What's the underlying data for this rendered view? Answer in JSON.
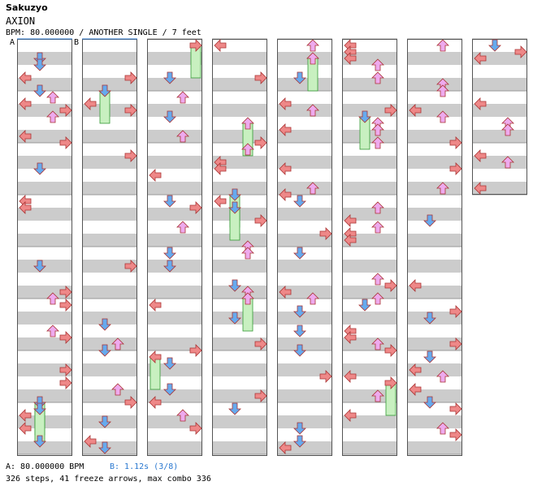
{
  "header": {
    "artist": "Sakuzyo",
    "title": "AXION",
    "meta": "BPM: 80.000000 / ANOTHER SINGLE / 7 feet"
  },
  "markers": {
    "a": "A",
    "b": "B"
  },
  "colors": {
    "left_arrow": "#ee8888",
    "down_arrow": "#66aaee",
    "up_arrow": "#eeaaee",
    "right_arrow": "#ee8888",
    "freeze": "#c8f0c0",
    "band_gray": "#cccccc",
    "band_white": "#ffffff",
    "accent_blue": "#2a78d0"
  },
  "footer": {
    "bpm_a": "A: 80.000000 BPM",
    "bpm_b": "B: 1.12s (3/8)",
    "stats": "326 steps, 41 freeze arrows, max combo 336"
  },
  "chart_data": {
    "type": "table",
    "columns": 8,
    "lanes": [
      "left",
      "down",
      "up",
      "right"
    ],
    "total_steps": 326,
    "freeze_arrows": 41,
    "max_combo": 336,
    "bpm": 80.0
  }
}
